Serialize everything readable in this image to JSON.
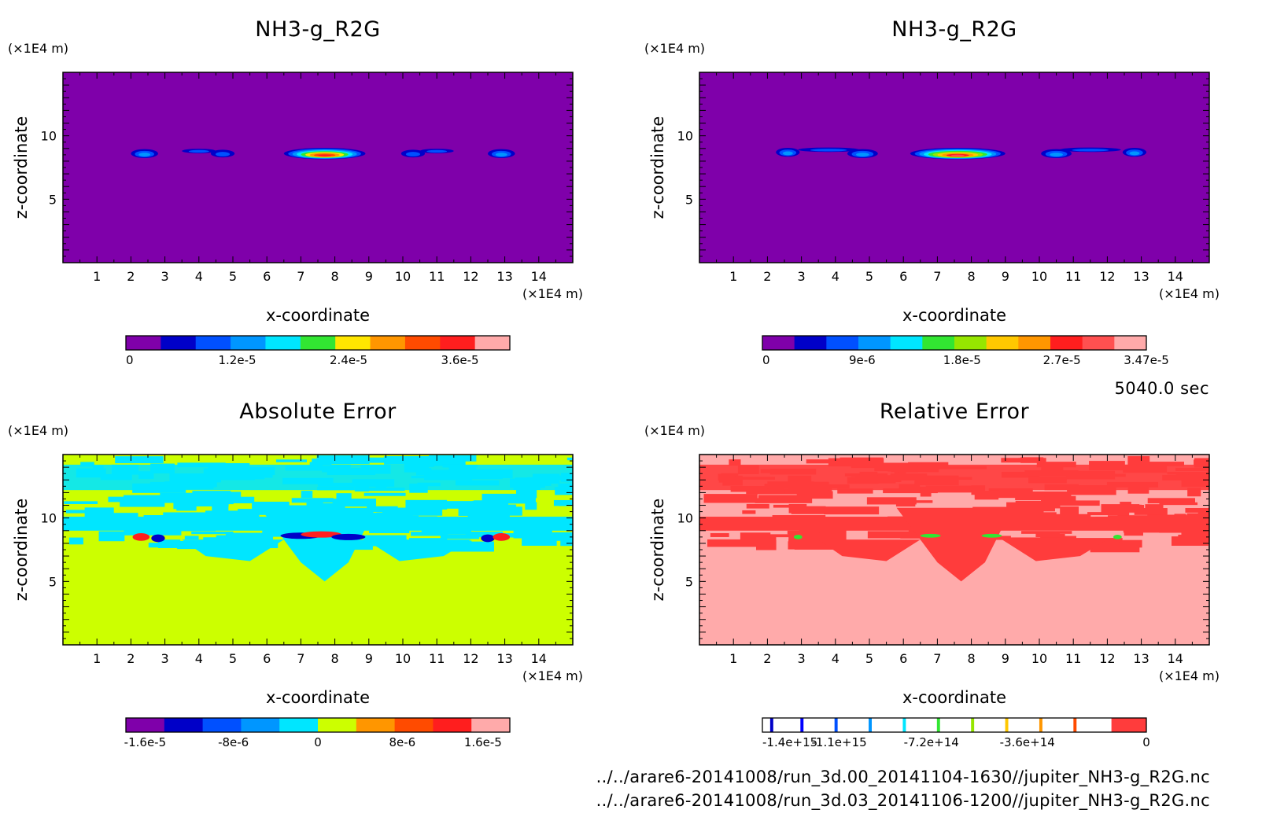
{
  "time_label": "5040.0 sec",
  "files": [
    "../../arare6-20141008/run_3d.00_20141104-1630//jupiter_NH3-g_R2G.nc",
    "../../arare6-20141008/run_3d.03_20141106-1200//jupiter_NH3-g_R2G.nc"
  ],
  "chart_data": [
    {
      "type": "heatmap",
      "title": "NH3-g_R2G",
      "xlabel": "x-coordinate",
      "ylabel": "z-coordinate",
      "x_unit": "(×1E4 m)",
      "y_unit": "(×1E4 m)",
      "xlim": [
        0,
        15
      ],
      "ylim": [
        0,
        15
      ],
      "x_ticks": [
        1,
        2,
        3,
        4,
        5,
        6,
        7,
        8,
        9,
        10,
        11,
        12,
        13,
        14
      ],
      "y_ticks": [
        5,
        10
      ],
      "background_color": "#7F00AA",
      "colorbar": {
        "colors": [
          "#7F00AA",
          "#0000C8",
          "#0050FF",
          "#0096FF",
          "#00E6FF",
          "#32E632",
          "#FFE600",
          "#FF9600",
          "#FF4B00",
          "#FF1E1E",
          "#FFAAAA"
        ],
        "labels": [
          "0",
          "1.2e-5",
          "2.4e-5",
          "3.6e-5"
        ],
        "label_fractions": [
          0.0,
          0.29,
          0.58,
          0.87
        ]
      },
      "features": [
        {
          "x": 2.4,
          "z": 8.6,
          "w": 0.8,
          "h": 0.7,
          "peak": 0.25
        },
        {
          "x": 4.0,
          "z": 8.8,
          "w": 1.0,
          "h": 0.35,
          "peak": 0.1
        },
        {
          "x": 4.7,
          "z": 8.6,
          "w": 0.7,
          "h": 0.6,
          "peak": 0.2
        },
        {
          "x": 7.7,
          "z": 8.6,
          "w": 2.4,
          "h": 0.9,
          "peak": 0.9
        },
        {
          "x": 10.3,
          "z": 8.6,
          "w": 0.7,
          "h": 0.6,
          "peak": 0.2
        },
        {
          "x": 11.0,
          "z": 8.8,
          "w": 1.0,
          "h": 0.35,
          "peak": 0.1
        },
        {
          "x": 12.9,
          "z": 8.6,
          "w": 0.8,
          "h": 0.7,
          "peak": 0.25
        }
      ]
    },
    {
      "type": "heatmap",
      "title": "NH3-g_R2G",
      "xlabel": "x-coordinate",
      "ylabel": "z-coordinate",
      "x_unit": "(×1E4 m)",
      "y_unit": "(×1E4 m)",
      "xlim": [
        0,
        15
      ],
      "ylim": [
        0,
        15
      ],
      "x_ticks": [
        1,
        2,
        3,
        4,
        5,
        6,
        7,
        8,
        9,
        10,
        11,
        12,
        13,
        14
      ],
      "y_ticks": [
        5,
        10
      ],
      "background_color": "#7F00AA",
      "colorbar": {
        "colors": [
          "#7F00AA",
          "#0000C8",
          "#0050FF",
          "#0096FF",
          "#00E6FF",
          "#32E632",
          "#96E600",
          "#FFC800",
          "#FF9600",
          "#FF1E1E",
          "#FF5050",
          "#FFAAAA"
        ],
        "labels": [
          "0",
          "9e-6",
          "1.8e-5",
          "2.7e-5",
          "3.47e-5"
        ],
        "label_fractions": [
          0.0,
          0.26,
          0.52,
          0.78,
          1.0
        ]
      },
      "features": [
        {
          "x": 2.6,
          "z": 8.7,
          "w": 0.7,
          "h": 0.7,
          "peak": 0.25
        },
        {
          "x": 3.8,
          "z": 8.9,
          "w": 1.8,
          "h": 0.35,
          "peak": 0.1
        },
        {
          "x": 4.8,
          "z": 8.6,
          "w": 0.9,
          "h": 0.7,
          "peak": 0.3
        },
        {
          "x": 7.6,
          "z": 8.6,
          "w": 2.8,
          "h": 0.9,
          "peak": 0.9
        },
        {
          "x": 10.5,
          "z": 8.6,
          "w": 0.9,
          "h": 0.7,
          "peak": 0.3
        },
        {
          "x": 11.5,
          "z": 8.9,
          "w": 1.8,
          "h": 0.35,
          "peak": 0.1
        },
        {
          "x": 12.8,
          "z": 8.7,
          "w": 0.7,
          "h": 0.7,
          "peak": 0.25
        }
      ]
    },
    {
      "type": "heatmap",
      "title": "Absolute Error",
      "xlabel": "x-coordinate",
      "ylabel": "z-coordinate",
      "x_unit": "(×1E4 m)",
      "y_unit": "(×1E4 m)",
      "xlim": [
        0,
        15
      ],
      "ylim": [
        0,
        15
      ],
      "x_ticks": [
        1,
        2,
        3,
        4,
        5,
        6,
        7,
        8,
        9,
        10,
        11,
        12,
        13,
        14
      ],
      "y_ticks": [
        5,
        10
      ],
      "background_color": "#CCFF00",
      "noise_color": "#00E6FF",
      "colorbar": {
        "colors": [
          "#7F00AA",
          "#0000C8",
          "#0050FF",
          "#0096FF",
          "#00E6FF",
          "#CCFF00",
          "#FF9600",
          "#FF4B00",
          "#FF1E1E",
          "#FFAAAA"
        ],
        "labels": [
          "-1.6e-5",
          "-8e-6",
          "0",
          "8e-6",
          "1.6e-5"
        ],
        "label_fractions": [
          0.05,
          0.28,
          0.5,
          0.72,
          0.93
        ]
      },
      "features": [
        {
          "x": 2.3,
          "z": 8.5,
          "w": 0.5,
          "h": 0.6,
          "color": "#FF1E1E"
        },
        {
          "x": 2.8,
          "z": 8.4,
          "w": 0.4,
          "h": 0.6,
          "color": "#0000C8"
        },
        {
          "x": 7.0,
          "z": 8.6,
          "w": 1.2,
          "h": 0.5,
          "color": "#0000C8"
        },
        {
          "x": 7.6,
          "z": 8.7,
          "w": 1.2,
          "h": 0.5,
          "color": "#FF1E1E"
        },
        {
          "x": 8.4,
          "z": 8.5,
          "w": 1.0,
          "h": 0.5,
          "color": "#0000C8"
        },
        {
          "x": 12.5,
          "z": 8.4,
          "w": 0.4,
          "h": 0.6,
          "color": "#0000C8"
        },
        {
          "x": 12.9,
          "z": 8.5,
          "w": 0.5,
          "h": 0.6,
          "color": "#FF1E1E"
        }
      ]
    },
    {
      "type": "heatmap",
      "title": "Relative Error",
      "xlabel": "x-coordinate",
      "ylabel": "z-coordinate",
      "x_unit": "(×1E4 m)",
      "y_unit": "(×1E4 m)",
      "xlim": [
        0,
        15
      ],
      "ylim": [
        0,
        15
      ],
      "x_ticks": [
        1,
        2,
        3,
        4,
        5,
        6,
        7,
        8,
        9,
        10,
        11,
        12,
        13,
        14
      ],
      "y_ticks": [
        5,
        10
      ],
      "background_color": "#FFAAAA",
      "noise_color": "#FF3C3C",
      "colorbar": {
        "colors": [
          "#FFFFFF",
          "#0000C8",
          "#FFFFFF",
          "#0000FF",
          "#FFFFFF",
          "#0050FF",
          "#FFFFFF",
          "#0096FF",
          "#FFFFFF",
          "#00E6FF",
          "#FFFFFF",
          "#32E632",
          "#FFFFFF",
          "#96E600",
          "#FFFFFF",
          "#FFC800",
          "#FFFFFF",
          "#FF9600",
          "#FFFFFF",
          "#FF4B00",
          "#FFFFFF",
          "#FF3C3C"
        ],
        "widths": [
          0.02,
          0.008,
          0.07,
          0.008,
          0.08,
          0.008,
          0.08,
          0.008,
          0.08,
          0.008,
          0.08,
          0.008,
          0.08,
          0.008,
          0.08,
          0.008,
          0.08,
          0.008,
          0.08,
          0.008,
          0.09,
          0.09
        ],
        "labels": [
          "-1.4e+15",
          "-1.1e+15",
          "-7.2e+14",
          "-3.6e+14",
          "0"
        ],
        "label_fractions": [
          0.0,
          0.2,
          0.44,
          0.69,
          1.0
        ]
      },
      "features": [
        {
          "x": 2.9,
          "z": 8.5,
          "w": 0.25,
          "h": 0.35,
          "color": "#32E632"
        },
        {
          "x": 6.8,
          "z": 8.6,
          "w": 0.6,
          "h": 0.3,
          "color": "#32E632"
        },
        {
          "x": 8.6,
          "z": 8.6,
          "w": 0.6,
          "h": 0.3,
          "color": "#32E632"
        },
        {
          "x": 12.3,
          "z": 8.5,
          "w": 0.25,
          "h": 0.35,
          "color": "#32E632"
        }
      ]
    }
  ]
}
